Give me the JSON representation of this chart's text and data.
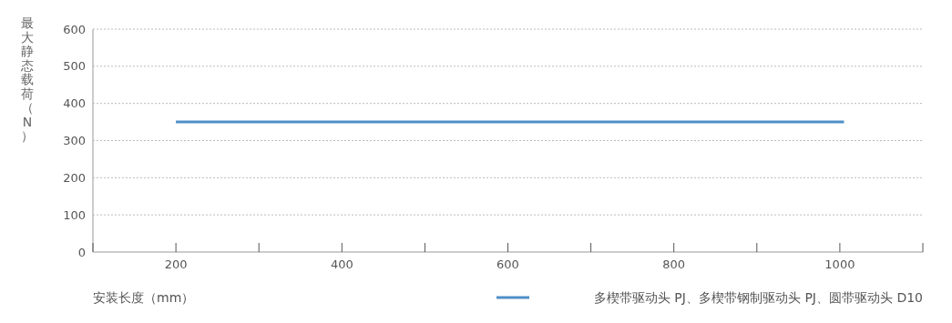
{
  "chart_data": {
    "type": "line",
    "xlabel": "安装长度（mm）",
    "ylabel": "最大静态载荷（N）",
    "x": [
      200,
      1005
    ],
    "series": [
      {
        "name": "多楔带驱动头 PJ、多楔带钢制驱动头 PJ、圆带驱动头 D10",
        "color": "#4f8fc6",
        "values": [
          350,
          350
        ]
      }
    ],
    "xlim": [
      100,
      1100
    ],
    "xticks": [
      {
        "value": 100,
        "label": null
      },
      200,
      {
        "value": 300,
        "label": null
      },
      400,
      {
        "value": 500,
        "label": null
      },
      600,
      {
        "value": 700,
        "label": null
      },
      800,
      {
        "value": 900,
        "label": null
      },
      1000,
      {
        "value": 1100,
        "label": null
      }
    ],
    "ylim": [
      0,
      600
    ],
    "yticks": [
      0,
      100,
      200,
      300,
      400,
      500,
      600
    ],
    "grid": "y",
    "legend": "bottom right",
    "marker": "none",
    "line_style": "solid"
  }
}
